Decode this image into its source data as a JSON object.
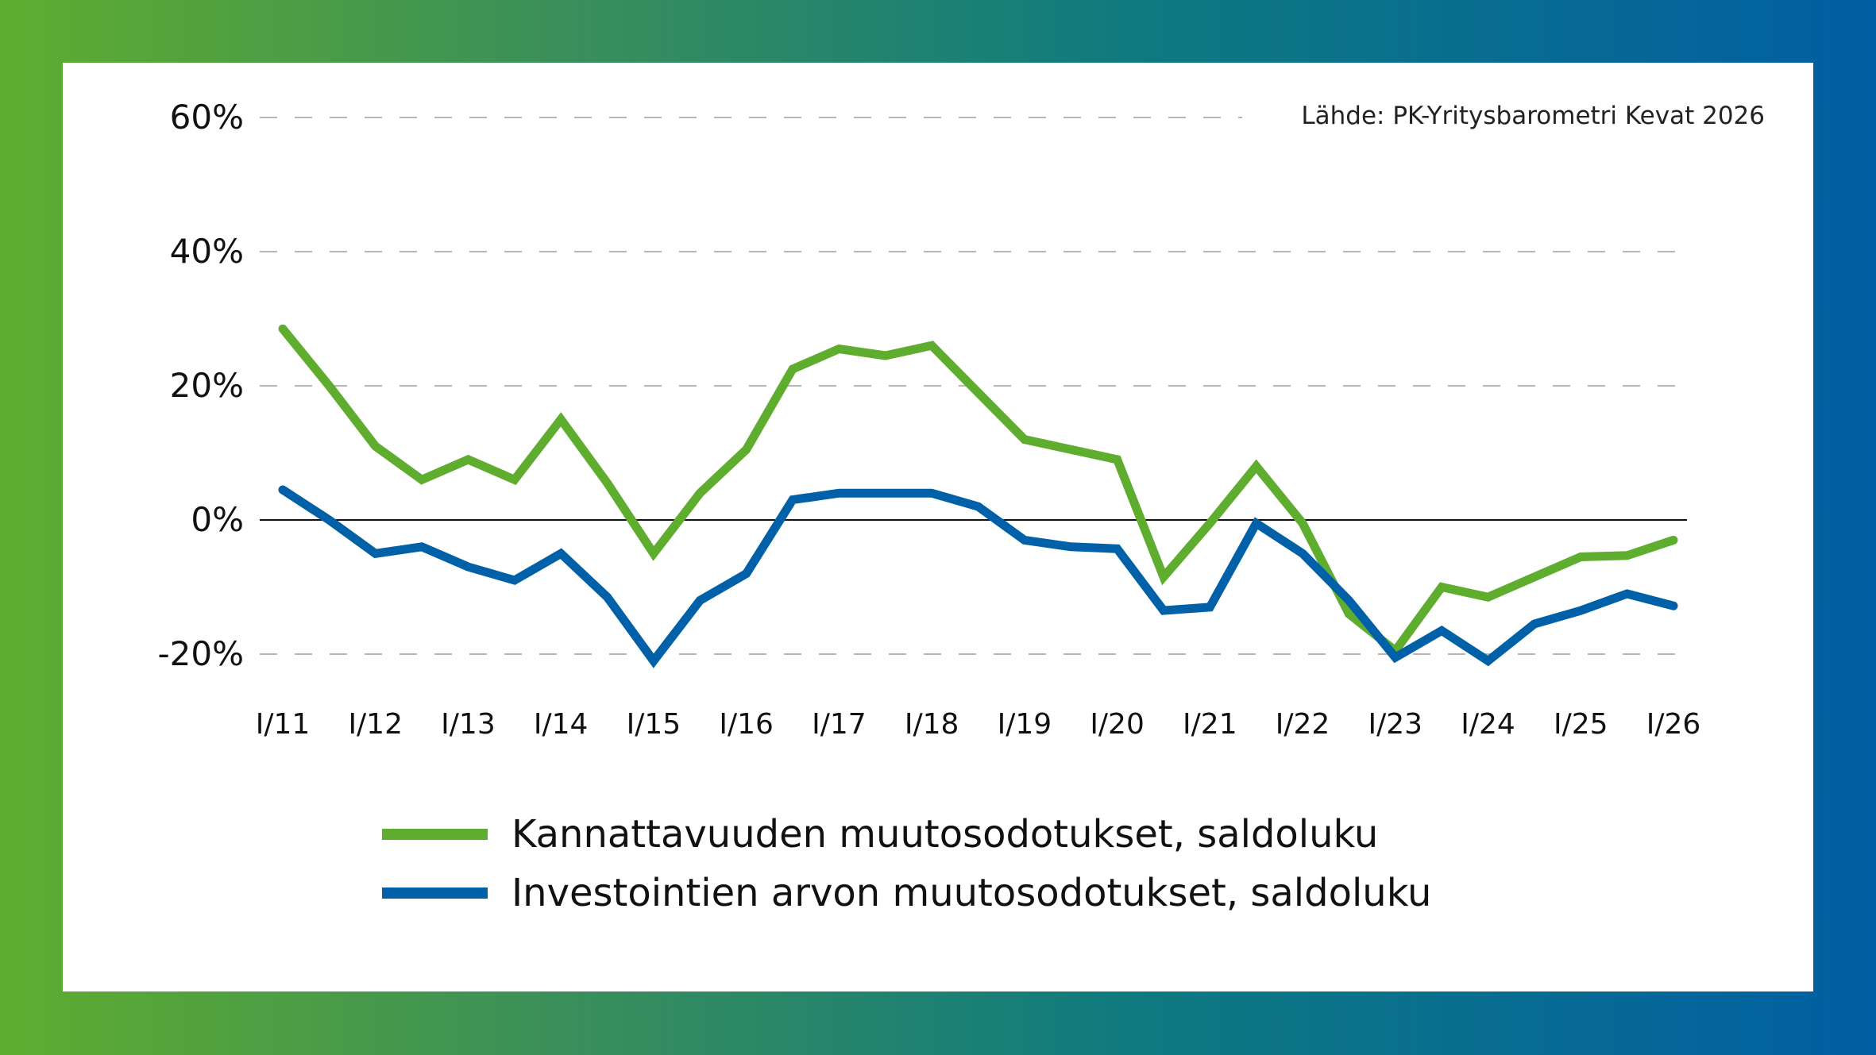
{
  "chart_data": {
    "type": "line",
    "title": "",
    "xlabel": "",
    "ylabel": "",
    "source": "Lähde: PK-Yritysbarometri Kevat 2026",
    "ylim": [
      -25,
      60
    ],
    "yticks": [
      60,
      40,
      20,
      0,
      -20
    ],
    "ytick_labels": [
      "60%",
      "40%",
      "20%",
      "0%",
      "-20%"
    ],
    "categories": [
      "I/11",
      "II/11",
      "I/12",
      "II/12",
      "I/13",
      "II/13",
      "I/14",
      "II/14",
      "I/15",
      "II/15",
      "I/16",
      "II/16",
      "I/17",
      "II/17",
      "I/18",
      "II/18",
      "I/19",
      "II/19",
      "I/20",
      "II/20",
      "I/21",
      "II/21",
      "I/22",
      "II/22",
      "I/23",
      "II/23",
      "I/24",
      "II/24",
      "I/25",
      "II/25",
      "I/26"
    ],
    "xtick_labels": [
      "I/11",
      "I/12",
      "I/13",
      "I/14",
      "I/15",
      "I/16",
      "I/17",
      "I/18",
      "I/19",
      "I/20",
      "I/21",
      "I/22",
      "I/23",
      "I/24",
      "I/25",
      "I/26"
    ],
    "series": [
      {
        "name": "Kannattavuuden muutosodotukset, saldoluku",
        "color": "#5fad2f",
        "values": [
          28.5,
          20,
          11,
          6,
          9,
          6,
          15,
          5.5,
          -5,
          4,
          10.5,
          22.5,
          25.5,
          24.5,
          26,
          19,
          12,
          10.5,
          9,
          -8.5,
          -0.5,
          8,
          -0.5,
          -14,
          -19.5,
          -10,
          -11.5,
          -8.5,
          -5.5,
          -5.3,
          -3
        ]
      },
      {
        "name": "Investointien arvon muutosodotukset, saldoluku",
        "color": "#0061a8",
        "values": [
          4.5,
          0,
          -5,
          -4,
          -7,
          -9,
          -5,
          -11.5,
          -21,
          -12,
          -8,
          3,
          4,
          4,
          4,
          2,
          -3,
          -4,
          -4.3,
          -13.5,
          -13,
          -0.5,
          -5,
          -12,
          -20.5,
          -16.5,
          -21,
          -15.5,
          -13.5,
          -11,
          -12.8
        ]
      }
    ]
  },
  "legend": {
    "items": [
      {
        "label": "Kannattavuuden muutosodotukset, saldoluku",
        "color": "#5fad2f"
      },
      {
        "label": "Investointien arvon muutosodotukset, saldoluku",
        "color": "#0061a8"
      }
    ]
  }
}
